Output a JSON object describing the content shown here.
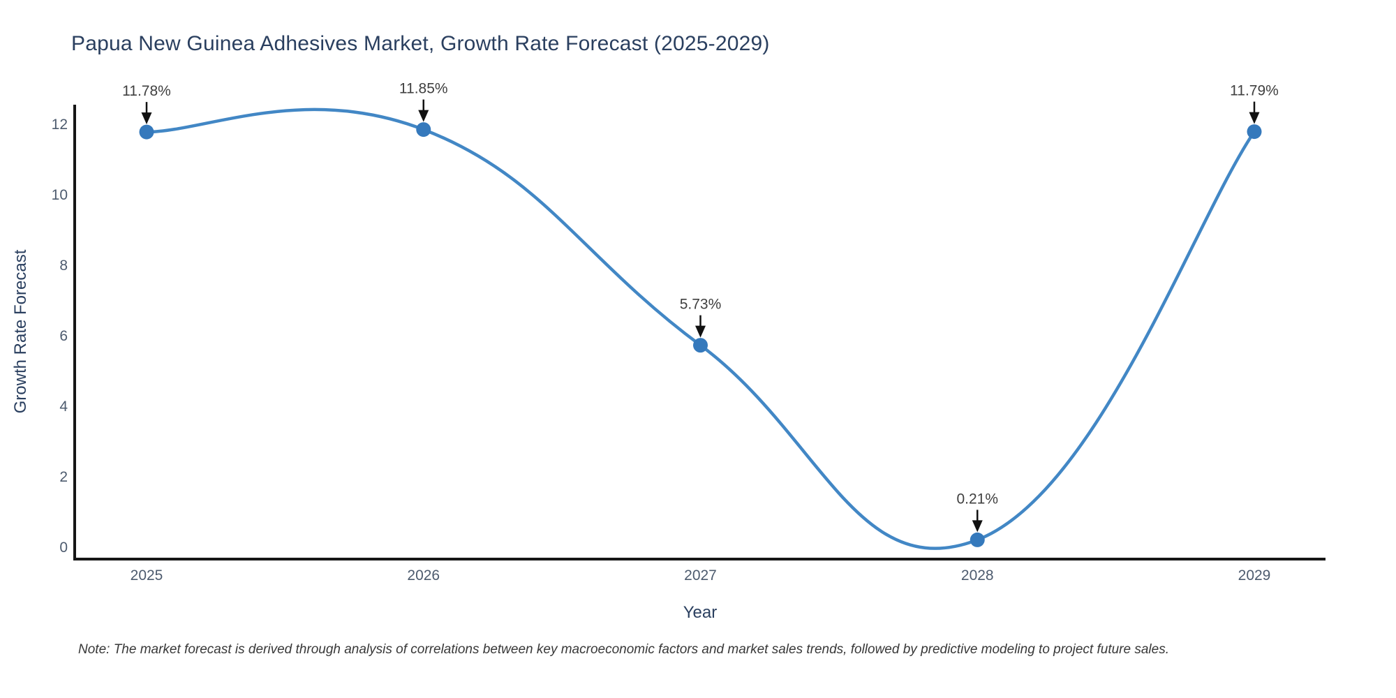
{
  "title": "Papua New Guinea Adhesives Market, Growth Rate Forecast (2025-2029)",
  "note": "Note: The market forecast is derived through analysis of correlations between key macroeconomic factors and market sales trends, followed by predictive modeling to project future sales.",
  "chart_data": {
    "type": "line",
    "title": "Papua New Guinea Adhesives Market, Growth Rate Forecast (2025-2029)",
    "xlabel": "Year",
    "ylabel": "Growth Rate Forecast",
    "x": [
      2025,
      2026,
      2027,
      2028,
      2029
    ],
    "y": [
      11.78,
      11.85,
      5.73,
      0.21,
      11.79
    ],
    "point_labels": [
      "11.78%",
      "11.85%",
      "5.73%",
      "0.21%",
      "11.79%"
    ],
    "xticks": [
      "2025",
      "2026",
      "2027",
      "2028",
      "2029"
    ],
    "yticks": [
      0,
      2,
      4,
      6,
      8,
      10,
      12
    ],
    "ylim": [
      -0.34,
      12.55
    ],
    "line_shape": "spline",
    "smoothing": 1.3,
    "grid": false,
    "legend": "none",
    "colors": {
      "line": "#4287c5",
      "marker": "#3579bc",
      "axis": "#161616",
      "arrow": "#111111",
      "titles": "#2a3f5f",
      "ticks": "#4d5b6e",
      "annotation_text": "#3f3f3f",
      "background": "#ffffff"
    }
  }
}
